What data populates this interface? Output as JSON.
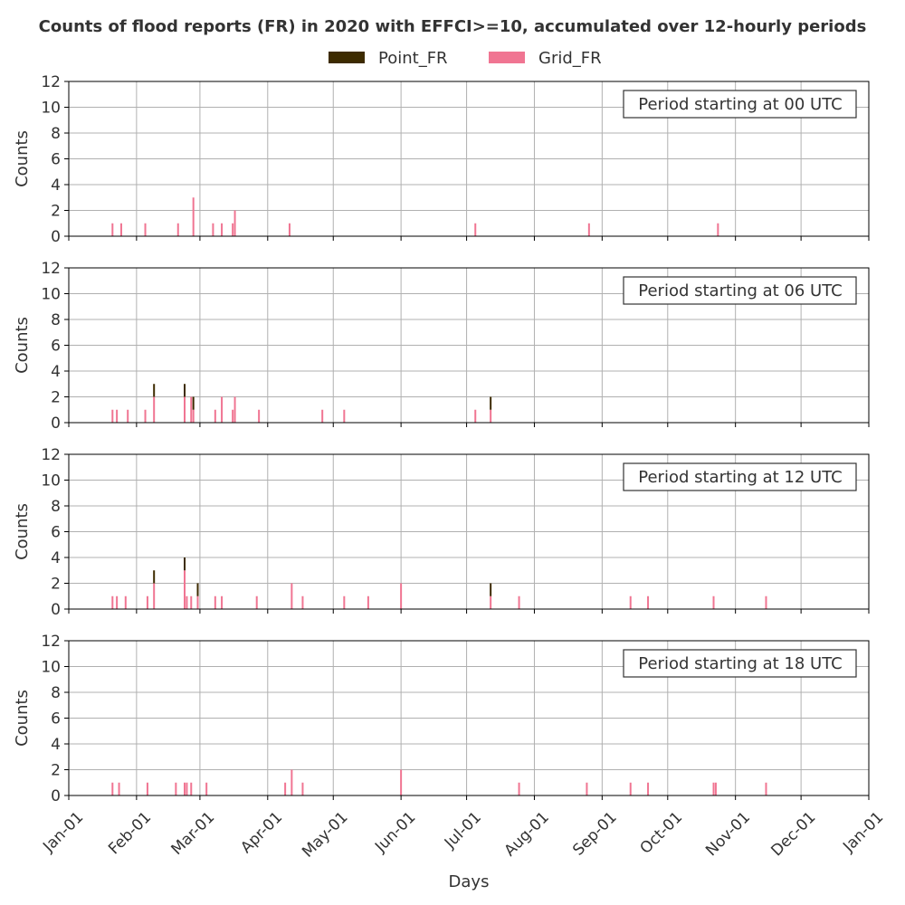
{
  "chart_data": {
    "type": "bar",
    "stacked": true,
    "title": "Counts of flood reports (FR) in 2020 with EFFCI>=10, accumulated over 12-hourly periods",
    "xlabel": "Days",
    "ylabel": "Counts",
    "ylim": [
      0,
      12
    ],
    "yticks": [
      0,
      2,
      4,
      6,
      8,
      10,
      12
    ],
    "xlim": [
      "2020-01-01",
      "2021-01-01"
    ],
    "xticks": [
      {
        "date": "2020-01-01",
        "label": "Jan-01"
      },
      {
        "date": "2020-02-01",
        "label": "Feb-01"
      },
      {
        "date": "2020-03-01",
        "label": "Mar-01"
      },
      {
        "date": "2020-04-01",
        "label": "Apr-01"
      },
      {
        "date": "2020-05-01",
        "label": "May-01"
      },
      {
        "date": "2020-06-01",
        "label": "Jun-01"
      },
      {
        "date": "2020-07-01",
        "label": "Jul-01"
      },
      {
        "date": "2020-08-01",
        "label": "Aug-01"
      },
      {
        "date": "2020-09-01",
        "label": "Sep-01"
      },
      {
        "date": "2020-10-01",
        "label": "Oct-01"
      },
      {
        "date": "2020-11-01",
        "label": "Nov-01"
      },
      {
        "date": "2020-12-01",
        "label": "Dec-01"
      },
      {
        "date": "2021-01-01",
        "label": "Jan-01"
      }
    ],
    "grid": true,
    "legend": {
      "placement": "top-center",
      "entries": [
        {
          "name": "Point_FR",
          "color": "#3d2b00"
        },
        {
          "name": "Grid_FR",
          "color": "#f07592"
        }
      ]
    },
    "panels": [
      {
        "label": "Period starting at 00 UTC",
        "bars": [
          {
            "date": "2020-01-21",
            "grid": 1,
            "point": 0
          },
          {
            "date": "2020-01-25",
            "grid": 1,
            "point": 0
          },
          {
            "date": "2020-02-05",
            "grid": 1,
            "point": 0
          },
          {
            "date": "2020-02-20",
            "grid": 1,
            "point": 0
          },
          {
            "date": "2020-02-27",
            "grid": 3,
            "point": 0
          },
          {
            "date": "2020-03-07",
            "grid": 1,
            "point": 0
          },
          {
            "date": "2020-03-11",
            "grid": 1,
            "point": 0
          },
          {
            "date": "2020-03-16",
            "grid": 1,
            "point": 0
          },
          {
            "date": "2020-03-17",
            "grid": 2,
            "point": 0
          },
          {
            "date": "2020-04-11",
            "grid": 1,
            "point": 0
          },
          {
            "date": "2020-07-05",
            "grid": 1,
            "point": 0
          },
          {
            "date": "2020-08-26",
            "grid": 1,
            "point": 0
          },
          {
            "date": "2020-10-24",
            "grid": 1,
            "point": 0
          }
        ]
      },
      {
        "label": "Period starting at 06 UTC",
        "bars": [
          {
            "date": "2020-01-21",
            "grid": 1,
            "point": 0
          },
          {
            "date": "2020-01-23",
            "grid": 1,
            "point": 0
          },
          {
            "date": "2020-01-28",
            "grid": 1,
            "point": 0
          },
          {
            "date": "2020-02-05",
            "grid": 1,
            "point": 0
          },
          {
            "date": "2020-02-09",
            "grid": 2,
            "point": 1
          },
          {
            "date": "2020-02-23",
            "grid": 2,
            "point": 1
          },
          {
            "date": "2020-02-26",
            "grid": 2,
            "point": 0
          },
          {
            "date": "2020-02-27",
            "grid": 1,
            "point": 1
          },
          {
            "date": "2020-03-08",
            "grid": 1,
            "point": 0
          },
          {
            "date": "2020-03-11",
            "grid": 2,
            "point": 0
          },
          {
            "date": "2020-03-16",
            "grid": 1,
            "point": 0
          },
          {
            "date": "2020-03-17",
            "grid": 2,
            "point": 0
          },
          {
            "date": "2020-03-28",
            "grid": 1,
            "point": 0
          },
          {
            "date": "2020-04-26",
            "grid": 1,
            "point": 0
          },
          {
            "date": "2020-05-06",
            "grid": 1,
            "point": 0
          },
          {
            "date": "2020-07-05",
            "grid": 1,
            "point": 0
          },
          {
            "date": "2020-07-12",
            "grid": 1,
            "point": 1
          }
        ]
      },
      {
        "label": "Period starting at 12 UTC",
        "bars": [
          {
            "date": "2020-01-21",
            "grid": 1,
            "point": 0
          },
          {
            "date": "2020-01-23",
            "grid": 1,
            "point": 0
          },
          {
            "date": "2020-01-27",
            "grid": 1,
            "point": 0
          },
          {
            "date": "2020-02-06",
            "grid": 1,
            "point": 0
          },
          {
            "date": "2020-02-09",
            "grid": 2,
            "point": 1
          },
          {
            "date": "2020-02-23",
            "grid": 3,
            "point": 1
          },
          {
            "date": "2020-02-24",
            "grid": 1,
            "point": 0
          },
          {
            "date": "2020-02-26",
            "grid": 1,
            "point": 0
          },
          {
            "date": "2020-02-29",
            "grid": 1,
            "point": 1
          },
          {
            "date": "2020-03-08",
            "grid": 1,
            "point": 0
          },
          {
            "date": "2020-03-11",
            "grid": 1,
            "point": 0
          },
          {
            "date": "2020-03-27",
            "grid": 1,
            "point": 0
          },
          {
            "date": "2020-04-12",
            "grid": 2,
            "point": 0
          },
          {
            "date": "2020-04-17",
            "grid": 1,
            "point": 0
          },
          {
            "date": "2020-05-06",
            "grid": 1,
            "point": 0
          },
          {
            "date": "2020-05-17",
            "grid": 1,
            "point": 0
          },
          {
            "date": "2020-06-01",
            "grid": 2,
            "point": 0
          },
          {
            "date": "2020-07-12",
            "grid": 1,
            "point": 1
          },
          {
            "date": "2020-07-25",
            "grid": 1,
            "point": 0
          },
          {
            "date": "2020-09-14",
            "grid": 1,
            "point": 0
          },
          {
            "date": "2020-09-22",
            "grid": 1,
            "point": 0
          },
          {
            "date": "2020-10-22",
            "grid": 1,
            "point": 0
          },
          {
            "date": "2020-11-15",
            "grid": 1,
            "point": 0
          }
        ]
      },
      {
        "label": "Period starting at 18 UTC",
        "bars": [
          {
            "date": "2020-01-21",
            "grid": 1,
            "point": 0
          },
          {
            "date": "2020-01-24",
            "grid": 1,
            "point": 0
          },
          {
            "date": "2020-02-06",
            "grid": 1,
            "point": 0
          },
          {
            "date": "2020-02-19",
            "grid": 1,
            "point": 0
          },
          {
            "date": "2020-02-23",
            "grid": 1,
            "point": 0
          },
          {
            "date": "2020-02-24",
            "grid": 1,
            "point": 0
          },
          {
            "date": "2020-02-26",
            "grid": 1,
            "point": 0
          },
          {
            "date": "2020-03-04",
            "grid": 1,
            "point": 0
          },
          {
            "date": "2020-04-09",
            "grid": 1,
            "point": 0
          },
          {
            "date": "2020-04-12",
            "grid": 2,
            "point": 0
          },
          {
            "date": "2020-04-17",
            "grid": 1,
            "point": 0
          },
          {
            "date": "2020-06-01",
            "grid": 2,
            "point": 0
          },
          {
            "date": "2020-07-25",
            "grid": 1,
            "point": 0
          },
          {
            "date": "2020-08-25",
            "grid": 1,
            "point": 0
          },
          {
            "date": "2020-09-14",
            "grid": 1,
            "point": 0
          },
          {
            "date": "2020-09-22",
            "grid": 1,
            "point": 0
          },
          {
            "date": "2020-10-22",
            "grid": 1,
            "point": 0
          },
          {
            "date": "2020-10-23",
            "grid": 1,
            "point": 0
          },
          {
            "date": "2020-11-15",
            "grid": 1,
            "point": 0
          }
        ]
      }
    ]
  }
}
